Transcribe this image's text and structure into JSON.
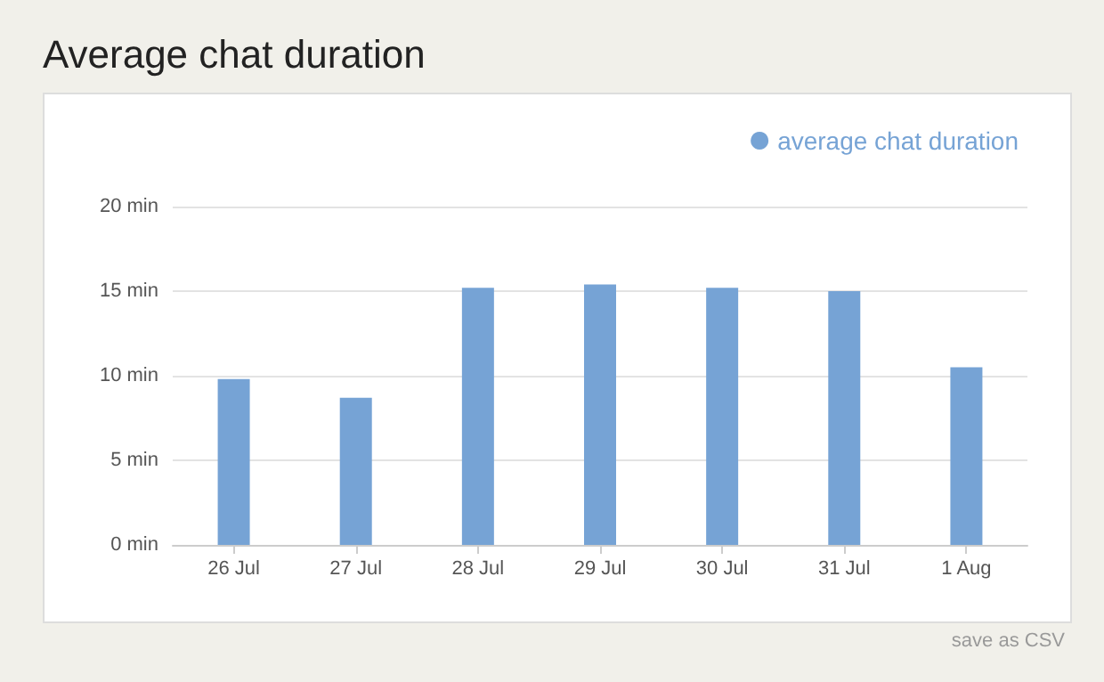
{
  "chart_data": {
    "type": "bar",
    "title": "Average chat duration",
    "categories": [
      "26 Jul",
      "27 Jul",
      "28 Jul",
      "29 Jul",
      "30 Jul",
      "31 Jul",
      "1 Aug"
    ],
    "series": [
      {
        "name": "average chat duration",
        "color": "#76a3d5",
        "values": [
          9.8,
          8.7,
          15.2,
          15.4,
          15.2,
          15.0,
          10.5
        ]
      }
    ],
    "ylim": [
      0,
      20
    ],
    "yticks": [
      {
        "value": 0,
        "label": "0 min"
      },
      {
        "value": 5,
        "label": "5 min"
      },
      {
        "value": 10,
        "label": "10 min"
      },
      {
        "value": 15,
        "label": "15 min"
      },
      {
        "value": 20,
        "label": "20 min"
      }
    ],
    "grid": "y",
    "legend": "top right",
    "annotations": [
      "save as CSV"
    ]
  }
}
